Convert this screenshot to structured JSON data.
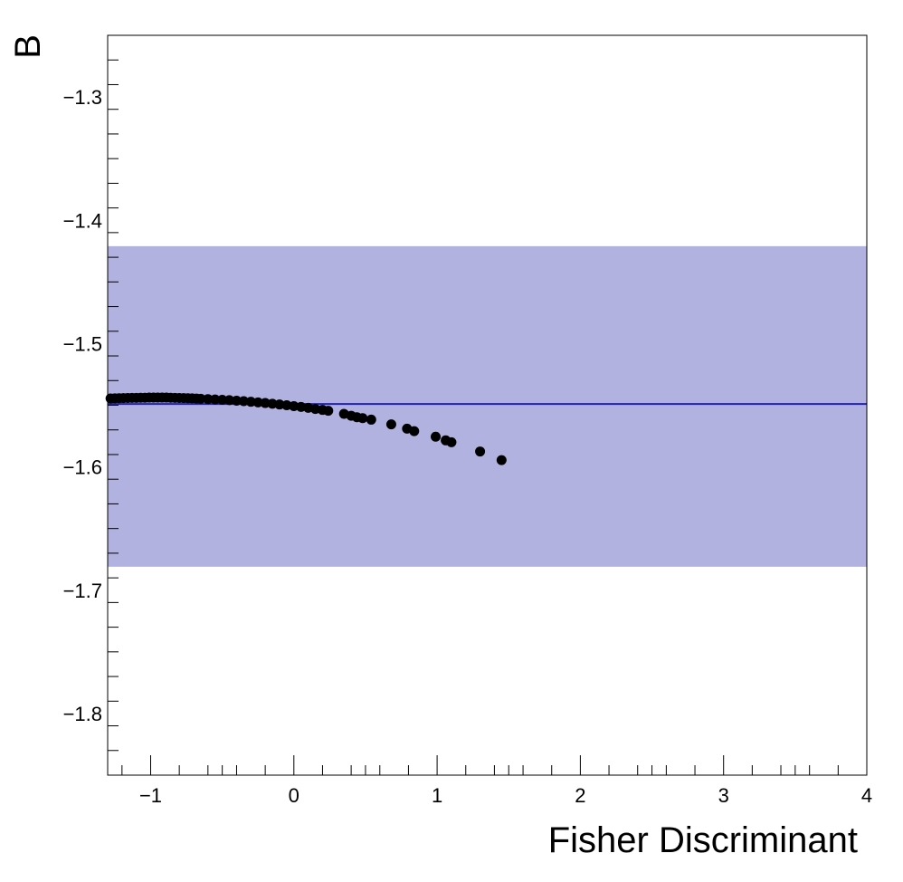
{
  "chart_data": {
    "type": "scatter",
    "xlabel": "Fisher Discriminant",
    "ylabel": "B",
    "xlim": [
      -1.3,
      4.0
    ],
    "ylim": [
      -1.85,
      -1.25
    ],
    "x_ticks": [
      -1,
      0,
      1,
      2,
      3,
      4
    ],
    "x_tick_labels": [
      "−1",
      "0",
      "1",
      "2",
      "3",
      "4"
    ],
    "y_ticks": [
      -1.3,
      -1.4,
      -1.5,
      -1.6,
      -1.7,
      -1.8
    ],
    "y_tick_labels": [
      "−1.3",
      "−1.4",
      "−1.5",
      "−1.6",
      "−1.7",
      "−1.8"
    ],
    "grid": false,
    "reference_line": {
      "y": -1.549,
      "color": "#1f1fb4"
    },
    "band": {
      "y_low": -1.681,
      "y_high": -1.421,
      "color": "#b2b2e0"
    },
    "marker_color": "#000000",
    "points": [
      {
        "x": -1.28,
        "y": -1.5445
      },
      {
        "x": -1.25,
        "y": -1.5444
      },
      {
        "x": -1.22,
        "y": -1.5443
      },
      {
        "x": -1.19,
        "y": -1.5442
      },
      {
        "x": -1.16,
        "y": -1.5441
      },
      {
        "x": -1.13,
        "y": -1.544
      },
      {
        "x": -1.1,
        "y": -1.544
      },
      {
        "x": -1.07,
        "y": -1.5439
      },
      {
        "x": -1.04,
        "y": -1.5439
      },
      {
        "x": -1.01,
        "y": -1.5438
      },
      {
        "x": -0.98,
        "y": -1.5438
      },
      {
        "x": -0.95,
        "y": -1.5438
      },
      {
        "x": -0.92,
        "y": -1.5438
      },
      {
        "x": -0.89,
        "y": -1.5438
      },
      {
        "x": -0.86,
        "y": -1.5439
      },
      {
        "x": -0.83,
        "y": -1.544
      },
      {
        "x": -0.8,
        "y": -1.5441
      },
      {
        "x": -0.77,
        "y": -1.5442
      },
      {
        "x": -0.74,
        "y": -1.5443
      },
      {
        "x": -0.71,
        "y": -1.5444
      },
      {
        "x": -0.68,
        "y": -1.5446
      },
      {
        "x": -0.65,
        "y": -1.5448
      },
      {
        "x": -0.6,
        "y": -1.545
      },
      {
        "x": -0.55,
        "y": -1.5453
      },
      {
        "x": -0.5,
        "y": -1.5456
      },
      {
        "x": -0.45,
        "y": -1.5459
      },
      {
        "x": -0.4,
        "y": -1.5463
      },
      {
        "x": -0.35,
        "y": -1.5467
      },
      {
        "x": -0.3,
        "y": -1.5472
      },
      {
        "x": -0.25,
        "y": -1.5477
      },
      {
        "x": -0.2,
        "y": -1.5482
      },
      {
        "x": -0.15,
        "y": -1.5488
      },
      {
        "x": -0.1,
        "y": -1.5494
      },
      {
        "x": -0.05,
        "y": -1.55
      },
      {
        "x": 0.0,
        "y": -1.5507
      },
      {
        "x": 0.05,
        "y": -1.5514
      },
      {
        "x": 0.1,
        "y": -1.5521
      },
      {
        "x": 0.15,
        "y": -1.553
      },
      {
        "x": 0.2,
        "y": -1.5538
      },
      {
        "x": 0.24,
        "y": -1.5545
      },
      {
        "x": 0.35,
        "y": -1.557
      },
      {
        "x": 0.4,
        "y": -1.5585
      },
      {
        "x": 0.44,
        "y": -1.5597
      },
      {
        "x": 0.48,
        "y": -1.5605
      },
      {
        "x": 0.54,
        "y": -1.5617
      },
      {
        "x": 0.68,
        "y": -1.5655
      },
      {
        "x": 0.79,
        "y": -1.569
      },
      {
        "x": 0.84,
        "y": -1.571
      },
      {
        "x": 0.99,
        "y": -1.5755
      },
      {
        "x": 1.06,
        "y": -1.5785
      },
      {
        "x": 1.1,
        "y": -1.58
      },
      {
        "x": 1.3,
        "y": -1.5875
      },
      {
        "x": 1.45,
        "y": -1.5945
      }
    ]
  }
}
